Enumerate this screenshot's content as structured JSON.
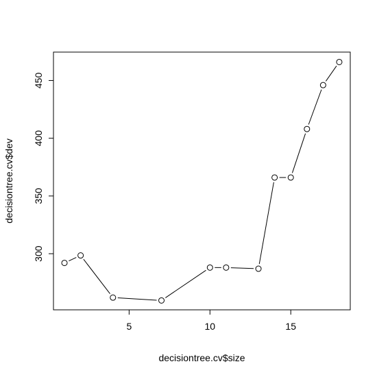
{
  "chart_data": {
    "type": "line",
    "title": "",
    "xlabel": "decisiontree.cv$size",
    "ylabel": "decisiontree.cv$dev",
    "x": [
      1,
      2,
      4,
      7,
      10,
      11,
      13,
      14,
      15,
      16,
      17,
      18
    ],
    "y": [
      292,
      298.5,
      262,
      259.5,
      288,
      288,
      287,
      366,
      366,
      408,
      446,
      466
    ],
    "xlim": [
      0.32,
      18.68
    ],
    "ylim": [
      251.4,
      474.6
    ],
    "xticks": [
      "5",
      "10",
      "15"
    ],
    "yticks": [
      "300",
      "350",
      "400",
      "450"
    ],
    "grid": false,
    "legend": "none",
    "style": "points-and-lines"
  }
}
